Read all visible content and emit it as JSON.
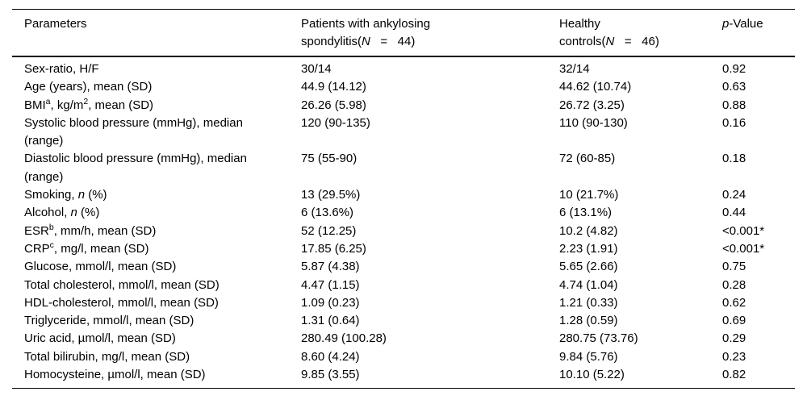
{
  "table": {
    "header": [
      {
        "name": "parameters",
        "segments": [
          {
            "t": "Parameters"
          }
        ]
      },
      {
        "name": "patients",
        "segments": [
          {
            "t": "Patients with ankylosing\nspondylitis("
          },
          {
            "t": "N",
            "i": true
          },
          {
            "t": "   =   44)"
          }
        ]
      },
      {
        "name": "controls",
        "segments": [
          {
            "t": "Healthy\ncontrols("
          },
          {
            "t": "N",
            "i": true
          },
          {
            "t": "   =   46)"
          }
        ]
      },
      {
        "name": "p_value",
        "segments": [
          {
            "t": "p",
            "i": true
          },
          {
            "t": "-Value"
          }
        ]
      }
    ],
    "rows": [
      {
        "parameter": [
          {
            "t": "Sex-ratio, H/F"
          }
        ],
        "patients": "30/14",
        "controls": "32/14",
        "p": "0.92"
      },
      {
        "parameter": [
          {
            "t": "Age (years), mean (SD)"
          }
        ],
        "patients": "44.9 (14.12)",
        "controls": "44.62 (10.74)",
        "p": "0.63"
      },
      {
        "parameter": [
          {
            "t": "BMI"
          },
          {
            "t": "a",
            "sup": true
          },
          {
            "t": ", kg/m"
          },
          {
            "t": "2",
            "sup": true
          },
          {
            "t": ", mean (SD)"
          }
        ],
        "patients": "26.26 (5.98)",
        "controls": "26.72 (3.25)",
        "p": "0.88"
      },
      {
        "parameter": [
          {
            "t": "Systolic blood pressure (mmHg), median\n(range)"
          }
        ],
        "patients": "120 (90-135)",
        "controls": "110 (90-130)",
        "p": "0.16"
      },
      {
        "parameter": [
          {
            "t": "Diastolic blood pressure (mmHg), median\n(range)"
          }
        ],
        "patients": "75 (55-90)",
        "controls": "72 (60-85)",
        "p": "0.18"
      },
      {
        "parameter": [
          {
            "t": "Smoking, "
          },
          {
            "t": "n",
            "i": true
          },
          {
            "t": " (%)"
          }
        ],
        "patients": "13 (29.5%)",
        "controls": "10 (21.7%)",
        "p": "0.24"
      },
      {
        "parameter": [
          {
            "t": "Alcohol, "
          },
          {
            "t": "n",
            "i": true
          },
          {
            "t": " (%)"
          }
        ],
        "patients": "6 (13.6%)",
        "controls": "6 (13.1%)",
        "p": "0.44"
      },
      {
        "parameter": [
          {
            "t": "ESR"
          },
          {
            "t": "b",
            "sup": true
          },
          {
            "t": ", mm/h, mean (SD)"
          }
        ],
        "patients": "52 (12.25)",
        "controls": "10.2 (4.82)",
        "p": "<0.001*"
      },
      {
        "parameter": [
          {
            "t": "CRP"
          },
          {
            "t": "c",
            "sup": true
          },
          {
            "t": ", mg/l, mean (SD)"
          }
        ],
        "patients": "17.85 (6.25)",
        "controls": "2.23 (1.91)",
        "p": "<0.001*"
      },
      {
        "parameter": [
          {
            "t": "Glucose, mmol/l, mean (SD)"
          }
        ],
        "patients": "5.87 (4.38)",
        "controls": "5.65 (2.66)",
        "p": "0.75"
      },
      {
        "parameter": [
          {
            "t": "Total cholesterol, mmol/l, mean (SD)"
          }
        ],
        "patients": "4.47 (1.15)",
        "controls": "4.74 (1.04)",
        "p": "0.28"
      },
      {
        "parameter": [
          {
            "t": "HDL-cholesterol, mmol/l, mean (SD)"
          }
        ],
        "patients": "1.09 (0.23)",
        "controls": "1.21 (0.33)",
        "p": "0.62"
      },
      {
        "parameter": [
          {
            "t": "Triglyceride, mmol/l, mean (SD)"
          }
        ],
        "patients": "1.31 (0.64)",
        "controls": "1.28 (0.59)",
        "p": "0.69"
      },
      {
        "parameter": [
          {
            "t": "Uric acid, µmol/l, mean (SD)"
          }
        ],
        "patients": "280.49 (100.28)",
        "controls": "280.75 (73.76)",
        "p": "0.29"
      },
      {
        "parameter": [
          {
            "t": "Total bilirubin, mg/l, mean (SD)"
          }
        ],
        "patients": "8.60 (4.24)",
        "controls": "9.84 (5.76)",
        "p": "0.23"
      },
      {
        "parameter": [
          {
            "t": "Homocysteine, µmol/l, mean (SD)"
          }
        ],
        "patients": "9.85 (3.55)",
        "controls": "10.10 (5.22)",
        "p": "0.82"
      }
    ],
    "colors": {
      "text": "#000000",
      "background": "#ffffff",
      "rule": "#000000"
    }
  }
}
